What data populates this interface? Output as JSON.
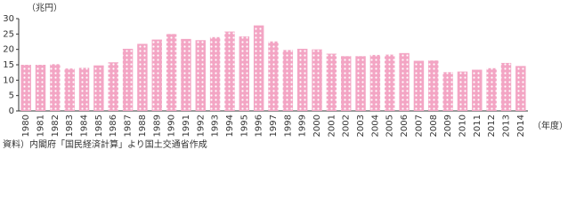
{
  "chart_data": {
    "type": "bar",
    "unit_label": "（兆円）",
    "x_unit_label": "（年度）",
    "source": "資料）内閣府「国民経済計算」より国土交通省作成",
    "categories": [
      "1980",
      "1981",
      "1982",
      "1983",
      "1984",
      "1985",
      "1986",
      "1987",
      "1988",
      "1989",
      "1990",
      "1991",
      "1992",
      "1993",
      "1994",
      "1995",
      "1996",
      "1997",
      "1998",
      "1999",
      "2000",
      "2001",
      "2002",
      "2003",
      "2004",
      "2005",
      "2006",
      "2007",
      "2008",
      "2009",
      "2010",
      "2011",
      "2012",
      "2013",
      "2014"
    ],
    "values": [
      15.0,
      15.0,
      15.2,
      13.8,
      14.0,
      14.8,
      15.8,
      20.2,
      21.8,
      23.2,
      25.0,
      23.4,
      23.0,
      24.0,
      25.8,
      24.2,
      27.8,
      22.6,
      19.8,
      20.2,
      20.0,
      18.6,
      17.8,
      17.8,
      18.2,
      18.3,
      18.8,
      16.3,
      16.4,
      12.6,
      12.8,
      13.4,
      13.9,
      15.6,
      14.6
    ],
    "color": "#f3a5c4",
    "ylim": [
      0,
      30
    ],
    "yticks": [
      0,
      5,
      10,
      15,
      20,
      25,
      30
    ],
    "grid": false
  }
}
